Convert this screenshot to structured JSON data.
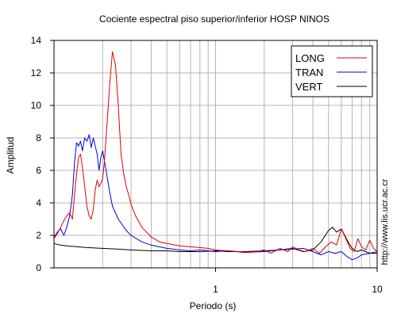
{
  "chart_data": {
    "type": "line",
    "title": "Cociente espectral piso superior/inferior  HOSP NINOS",
    "xlabel": "Periodo (s)",
    "ylabel": "Amplitud",
    "xscale": "log",
    "xlim": [
      0.1,
      10
    ],
    "ylim": [
      0,
      14
    ],
    "yticks": [
      0,
      2,
      4,
      6,
      8,
      10,
      12,
      14
    ],
    "yticklabels": [
      "0",
      "2",
      "4",
      "6",
      "8",
      "10",
      "12",
      "14"
    ],
    "xticks": [
      1,
      10
    ],
    "xticklabels": [
      "1",
      "10"
    ],
    "grid": true,
    "legend_position": "top-right",
    "watermark": "http://www.lis.ucr.ac.cr",
    "series": [
      {
        "name": "LONG",
        "color": "#e00000",
        "x": [
          0.1,
          0.105,
          0.11,
          0.115,
          0.12,
          0.125,
          0.13,
          0.134,
          0.138,
          0.142,
          0.146,
          0.15,
          0.155,
          0.16,
          0.165,
          0.17,
          0.175,
          0.18,
          0.185,
          0.19,
          0.195,
          0.2,
          0.205,
          0.21,
          0.215,
          0.22,
          0.23,
          0.24,
          0.25,
          0.26,
          0.27,
          0.28,
          0.29,
          0.3,
          0.32,
          0.35,
          0.4,
          0.45,
          0.5,
          0.6,
          0.7,
          0.8,
          0.9,
          1,
          1.2,
          1.4,
          1.6,
          1.8,
          2,
          2.2,
          2.5,
          2.8,
          3,
          3.3,
          3.6,
          4,
          4.4,
          4.8,
          5.2,
          5.6,
          6,
          6.4,
          6.8,
          7.2,
          7.6,
          8,
          8.5,
          9,
          9.5,
          10
        ],
        "values": [
          1.8,
          2.1,
          2.5,
          2.9,
          3.2,
          3.4,
          3.0,
          4.5,
          5.8,
          6.8,
          7.0,
          6.2,
          5.0,
          3.8,
          3.2,
          3.0,
          3.6,
          4.8,
          5.4,
          5.0,
          5.2,
          5.5,
          6.5,
          8.0,
          9.5,
          11.0,
          13.3,
          12.5,
          10.0,
          7.0,
          5.8,
          5.0,
          4.5,
          3.9,
          3.2,
          2.5,
          1.9,
          1.6,
          1.5,
          1.35,
          1.3,
          1.25,
          1.2,
          1.1,
          1.05,
          1.0,
          0.95,
          1.0,
          1.1,
          0.9,
          1.2,
          1.0,
          1.3,
          1.1,
          1.0,
          1.2,
          0.9,
          1.3,
          1.6,
          1.4,
          2.4,
          1.8,
          1.2,
          1.0,
          1.8,
          1.3,
          1.1,
          1.7,
          1.2,
          1.0
        ]
      },
      {
        "name": "TRAN",
        "color": "#0000dd",
        "x": [
          0.1,
          0.105,
          0.11,
          0.115,
          0.12,
          0.125,
          0.13,
          0.134,
          0.138,
          0.142,
          0.146,
          0.15,
          0.155,
          0.16,
          0.165,
          0.17,
          0.175,
          0.18,
          0.185,
          0.19,
          0.195,
          0.2,
          0.21,
          0.22,
          0.23,
          0.25,
          0.28,
          0.3,
          0.35,
          0.4,
          0.5,
          0.6,
          0.7,
          0.8,
          1,
          1.2,
          1.5,
          2,
          2.5,
          3,
          3.5,
          4,
          4.5,
          5,
          5.5,
          6,
          6.5,
          7,
          7.5,
          8,
          9,
          10
        ],
        "values": [
          1.9,
          2.2,
          2.4,
          2.0,
          2.5,
          3.2,
          4.5,
          6.5,
          7.7,
          7.5,
          7.8,
          7.2,
          8.0,
          7.8,
          8.2,
          7.4,
          8.0,
          7.5,
          7.0,
          6.0,
          6.8,
          7.2,
          6.0,
          4.8,
          3.8,
          3.0,
          2.3,
          2.0,
          1.6,
          1.4,
          1.2,
          1.1,
          1.05,
          1.1,
          1.0,
          1.05,
          0.95,
          1.0,
          1.1,
          1.15,
          1.2,
          1.0,
          0.8,
          1.0,
          0.9,
          1.0,
          0.7,
          0.5,
          0.6,
          0.8,
          0.9,
          1.0
        ]
      },
      {
        "name": "VERT",
        "color": "#000000",
        "x": [
          0.1,
          0.11,
          0.12,
          0.14,
          0.16,
          0.2,
          0.25,
          0.3,
          0.4,
          0.5,
          0.6,
          0.8,
          1,
          1.2,
          1.5,
          2,
          2.5,
          3,
          3.5,
          4,
          4.5,
          5,
          5.3,
          5.6,
          6,
          6.3,
          6.7,
          7,
          7.5,
          8,
          9,
          10
        ],
        "values": [
          1.5,
          1.4,
          1.35,
          1.3,
          1.25,
          1.2,
          1.15,
          1.1,
          1.05,
          1.05,
          1.0,
          1.0,
          1.05,
          1.0,
          1.0,
          1.05,
          1.1,
          1.2,
          1.0,
          1.1,
          1.6,
          2.3,
          2.5,
          2.2,
          2.4,
          2.0,
          1.5,
          1.2,
          1.0,
          1.1,
          0.9,
          0.9
        ]
      }
    ]
  }
}
